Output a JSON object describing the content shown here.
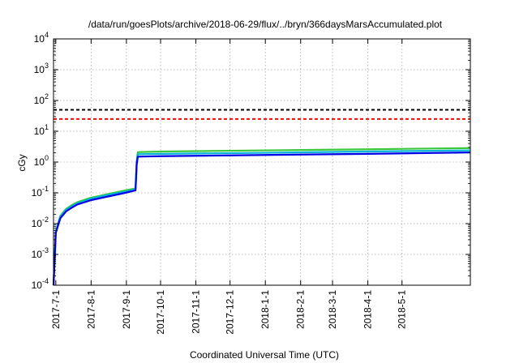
{
  "chart_data": {
    "type": "line",
    "title": "/data/run/goesPlots/archive/2018-06-29/flux/../bryn/366daysMarsAccumulated.plot",
    "xlabel": "Coordinated Universal Time (UTC)",
    "ylabel": "cGy",
    "xlim": [
      "2017-06-29",
      "2018-06-30"
    ],
    "ylim": [
      0.0001,
      10000
    ],
    "yscale": "log",
    "grid": true,
    "x_ticks": [
      "2017-7-1",
      "2017-8-1",
      "2017-9-1",
      "2017-10-1",
      "2017-11-1",
      "2017-12-1",
      "2018-1-1",
      "2018-2-1",
      "2018-3-1",
      "2018-4-1",
      "2018-5-1"
    ],
    "y_ticks": [
      {
        "base": "10",
        "exp": "-4"
      },
      {
        "base": "10",
        "exp": "-3"
      },
      {
        "base": "10",
        "exp": "-2"
      },
      {
        "base": "10",
        "exp": "-1"
      },
      {
        "base": "10",
        "exp": "0"
      },
      {
        "base": "10",
        "exp": "1"
      },
      {
        "base": "10",
        "exp": "2"
      },
      {
        "base": "10",
        "exp": "3"
      },
      {
        "base": "10",
        "exp": "4"
      }
    ],
    "reference_lines": [
      {
        "y": 50,
        "color": "#000000",
        "style": "dashed"
      },
      {
        "y": 25,
        "color": "#ff0000",
        "style": "dashed"
      }
    ],
    "series": [
      {
        "color": "#3cc83c",
        "x": [
          "2017-06-29",
          "2017-07-01",
          "2017-07-05",
          "2017-07-10",
          "2017-07-15",
          "2017-07-20",
          "2017-08-01",
          "2017-08-15",
          "2017-08-31",
          "2017-09-09",
          "2017-09-10",
          "2017-09-11",
          "2017-10-01",
          "2018-01-01",
          "2018-04-01",
          "2018-06-30"
        ],
        "y": [
          0.0001,
          0.006,
          0.018,
          0.03,
          0.04,
          0.05,
          0.07,
          0.09,
          0.12,
          0.14,
          1.0,
          2.1,
          2.2,
          2.4,
          2.6,
          2.85
        ]
      },
      {
        "color": "#00b4d8",
        "x": [
          "2017-06-29",
          "2017-07-01",
          "2017-07-05",
          "2017-07-10",
          "2017-07-15",
          "2017-07-20",
          "2017-08-01",
          "2017-08-15",
          "2017-08-31",
          "2017-09-09",
          "2017-09-10",
          "2017-09-11",
          "2017-10-01",
          "2018-01-01",
          "2018-04-01",
          "2018-06-30"
        ],
        "y": [
          0.0001,
          0.0055,
          0.017,
          0.028,
          0.037,
          0.046,
          0.065,
          0.085,
          0.11,
          0.13,
          0.9,
          1.8,
          1.85,
          2.0,
          2.2,
          2.4
        ]
      },
      {
        "color": "#0000e6",
        "x": [
          "2017-06-29",
          "2017-07-01",
          "2017-07-05",
          "2017-07-10",
          "2017-07-15",
          "2017-07-20",
          "2017-08-01",
          "2017-08-15",
          "2017-08-31",
          "2017-09-09",
          "2017-09-10",
          "2017-09-11",
          "2017-10-01",
          "2018-01-01",
          "2018-04-01",
          "2018-06-30"
        ],
        "y": [
          0.0001,
          0.005,
          0.015,
          0.025,
          0.033,
          0.042,
          0.058,
          0.075,
          0.1,
          0.12,
          0.8,
          1.5,
          1.55,
          1.7,
          1.85,
          2.05
        ]
      }
    ]
  }
}
